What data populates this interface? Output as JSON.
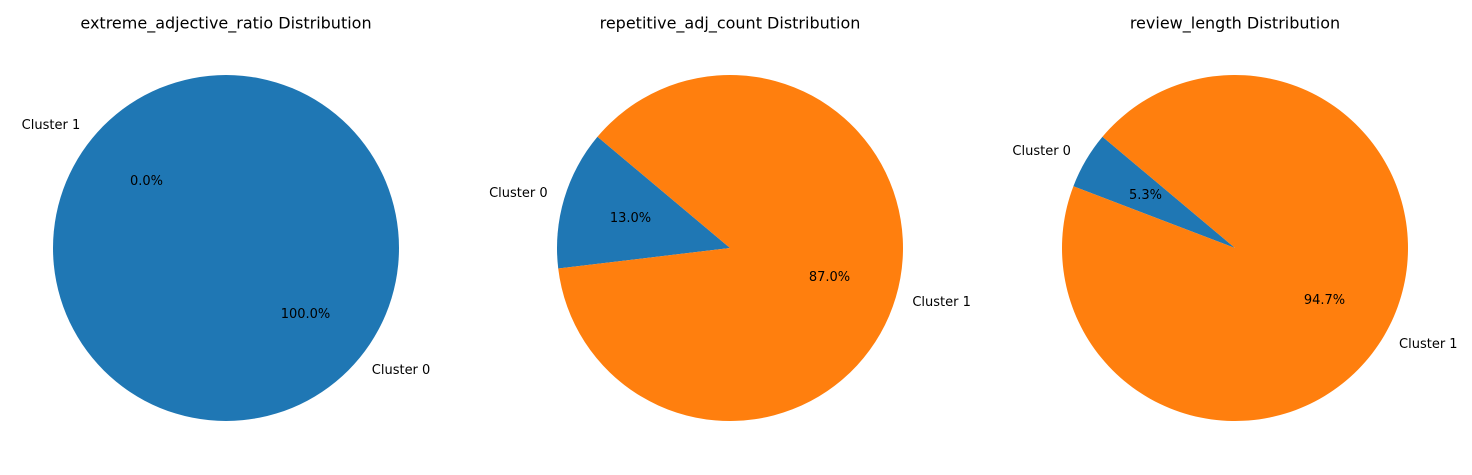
{
  "chart_data": [
    {
      "type": "pie",
      "title": "extreme_adjective_ratio Distribution",
      "slices": [
        {
          "label": "Cluster 0",
          "value": 100.0,
          "pct_label": "100.0%",
          "color": "#1f77b4"
        },
        {
          "label": "Cluster 1",
          "value": 0.0,
          "pct_label": "0.0%",
          "color": "#ff7f0e"
        }
      ],
      "start_angle_deg": 140,
      "direction": "counterclockwise"
    },
    {
      "type": "pie",
      "title": "repetitive_adj_count Distribution",
      "slices": [
        {
          "label": "Cluster 0",
          "value": 13.0,
          "pct_label": "13.0%",
          "color": "#1f77b4"
        },
        {
          "label": "Cluster 1",
          "value": 87.0,
          "pct_label": "87.0%",
          "color": "#ff7f0e"
        }
      ],
      "start_angle_deg": 140,
      "direction": "counterclockwise"
    },
    {
      "type": "pie",
      "title": "review_length Distribution",
      "slices": [
        {
          "label": "Cluster 0",
          "value": 5.3,
          "pct_label": "5.3%",
          "color": "#1f77b4"
        },
        {
          "label": "Cluster 1",
          "value": 94.7,
          "pct_label": "94.7%",
          "color": "#ff7f0e"
        }
      ],
      "start_angle_deg": 140,
      "direction": "counterclockwise"
    }
  ]
}
